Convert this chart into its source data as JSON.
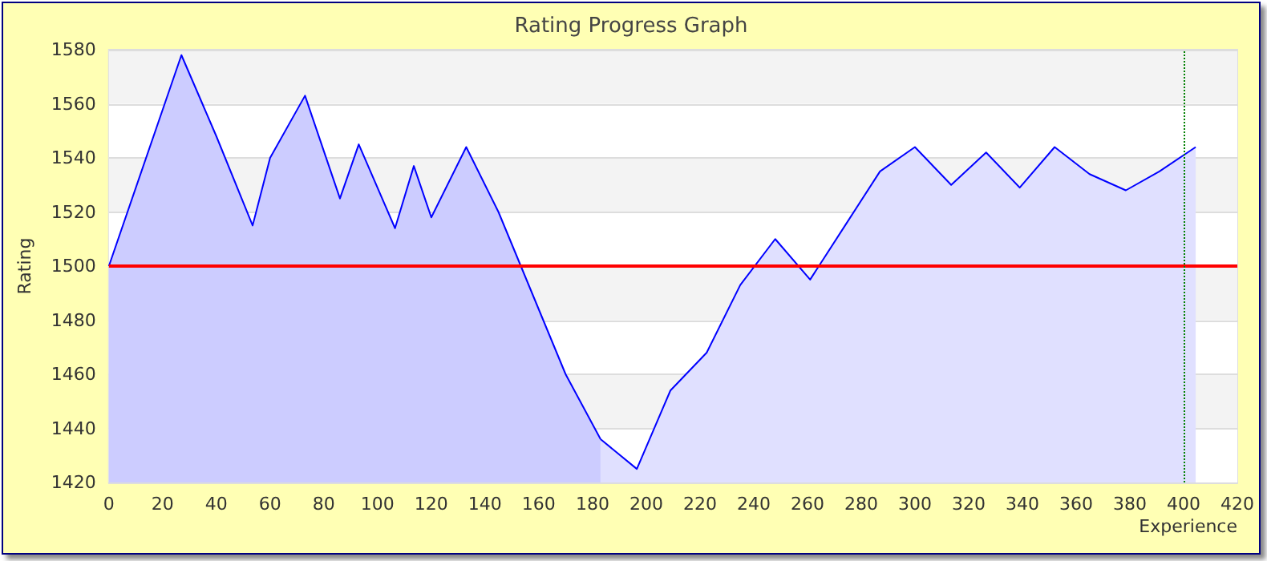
{
  "chart_data": {
    "type": "area",
    "title": "Rating Progress Graph",
    "xlabel": "Experience",
    "ylabel": "Rating",
    "series": [
      {
        "color": "#0000ff",
        "x": [
          0,
          27,
          40,
          53.5,
          60,
          73,
          86,
          93,
          106.5,
          113.5,
          120,
          133,
          145,
          170,
          183
        ],
        "values": [
          1500,
          1578,
          1548,
          1515,
          1540,
          1563,
          1525,
          1545,
          1514,
          1537,
          1518,
          1544,
          1520,
          1460,
          1436
        ]
      },
      {
        "color": "#0000ff",
        "x": [
          183,
          196.5,
          209,
          222.5,
          235,
          248,
          261,
          274,
          287,
          300,
          313.5,
          326.5,
          339,
          352,
          365,
          378.5,
          391,
          404.5
        ],
        "values": [
          1436,
          1425,
          1454,
          1468,
          1493,
          1510,
          1495,
          1515,
          1535,
          1544,
          1530,
          1542,
          1529,
          1544,
          1534,
          1528,
          1535,
          1544
        ]
      }
    ],
    "xlim": [
      0,
      420
    ],
    "xticks": [
      0,
      20,
      40,
      60,
      80,
      100,
      120,
      140,
      160,
      180,
      200,
      220,
      240,
      260,
      280,
      300,
      320,
      340,
      360,
      380,
      400,
      420
    ],
    "ylim": [
      1420,
      1580
    ],
    "yticks": [
      1420,
      1440,
      1460,
      1480,
      1500,
      1520,
      1540,
      1560,
      1580
    ],
    "ref_lines": [
      {
        "axis": "y",
        "value": 1500,
        "color": "#ff0000",
        "line_style": "solid"
      },
      {
        "axis": "x",
        "value": 400,
        "color": "#008000",
        "line_style": "dotted"
      }
    ],
    "grid": "y",
    "marker": "none"
  }
}
